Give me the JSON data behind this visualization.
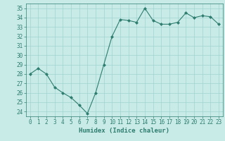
{
  "x": [
    0,
    1,
    2,
    3,
    4,
    5,
    6,
    7,
    8,
    9,
    10,
    11,
    12,
    13,
    14,
    15,
    16,
    17,
    18,
    19,
    20,
    21,
    22,
    23
  ],
  "y": [
    28.0,
    28.6,
    28.0,
    26.6,
    26.0,
    25.5,
    24.7,
    23.8,
    26.0,
    29.0,
    32.0,
    33.8,
    33.7,
    33.5,
    35.0,
    33.7,
    33.3,
    33.3,
    33.5,
    34.5,
    34.0,
    34.2,
    34.1,
    33.3
  ],
  "line_color": "#2e7d6e",
  "marker": "D",
  "marker_size": 2.0,
  "linewidth": 0.8,
  "bg_color": "#c8ebe8",
  "grid_color": "#a0d4d0",
  "xlabel": "Humidex (Indice chaleur)",
  "ylim": [
    23.5,
    35.5
  ],
  "xlim": [
    -0.5,
    23.5
  ],
  "yticks": [
    24,
    25,
    26,
    27,
    28,
    29,
    30,
    31,
    32,
    33,
    34,
    35
  ],
  "xticks": [
    0,
    1,
    2,
    3,
    4,
    5,
    6,
    7,
    8,
    9,
    10,
    11,
    12,
    13,
    14,
    15,
    16,
    17,
    18,
    19,
    20,
    21,
    22,
    23
  ],
  "tick_color": "#2e7d6e",
  "label_color": "#2e7d6e",
  "xlabel_fontsize": 6.5,
  "tick_fontsize": 5.5
}
